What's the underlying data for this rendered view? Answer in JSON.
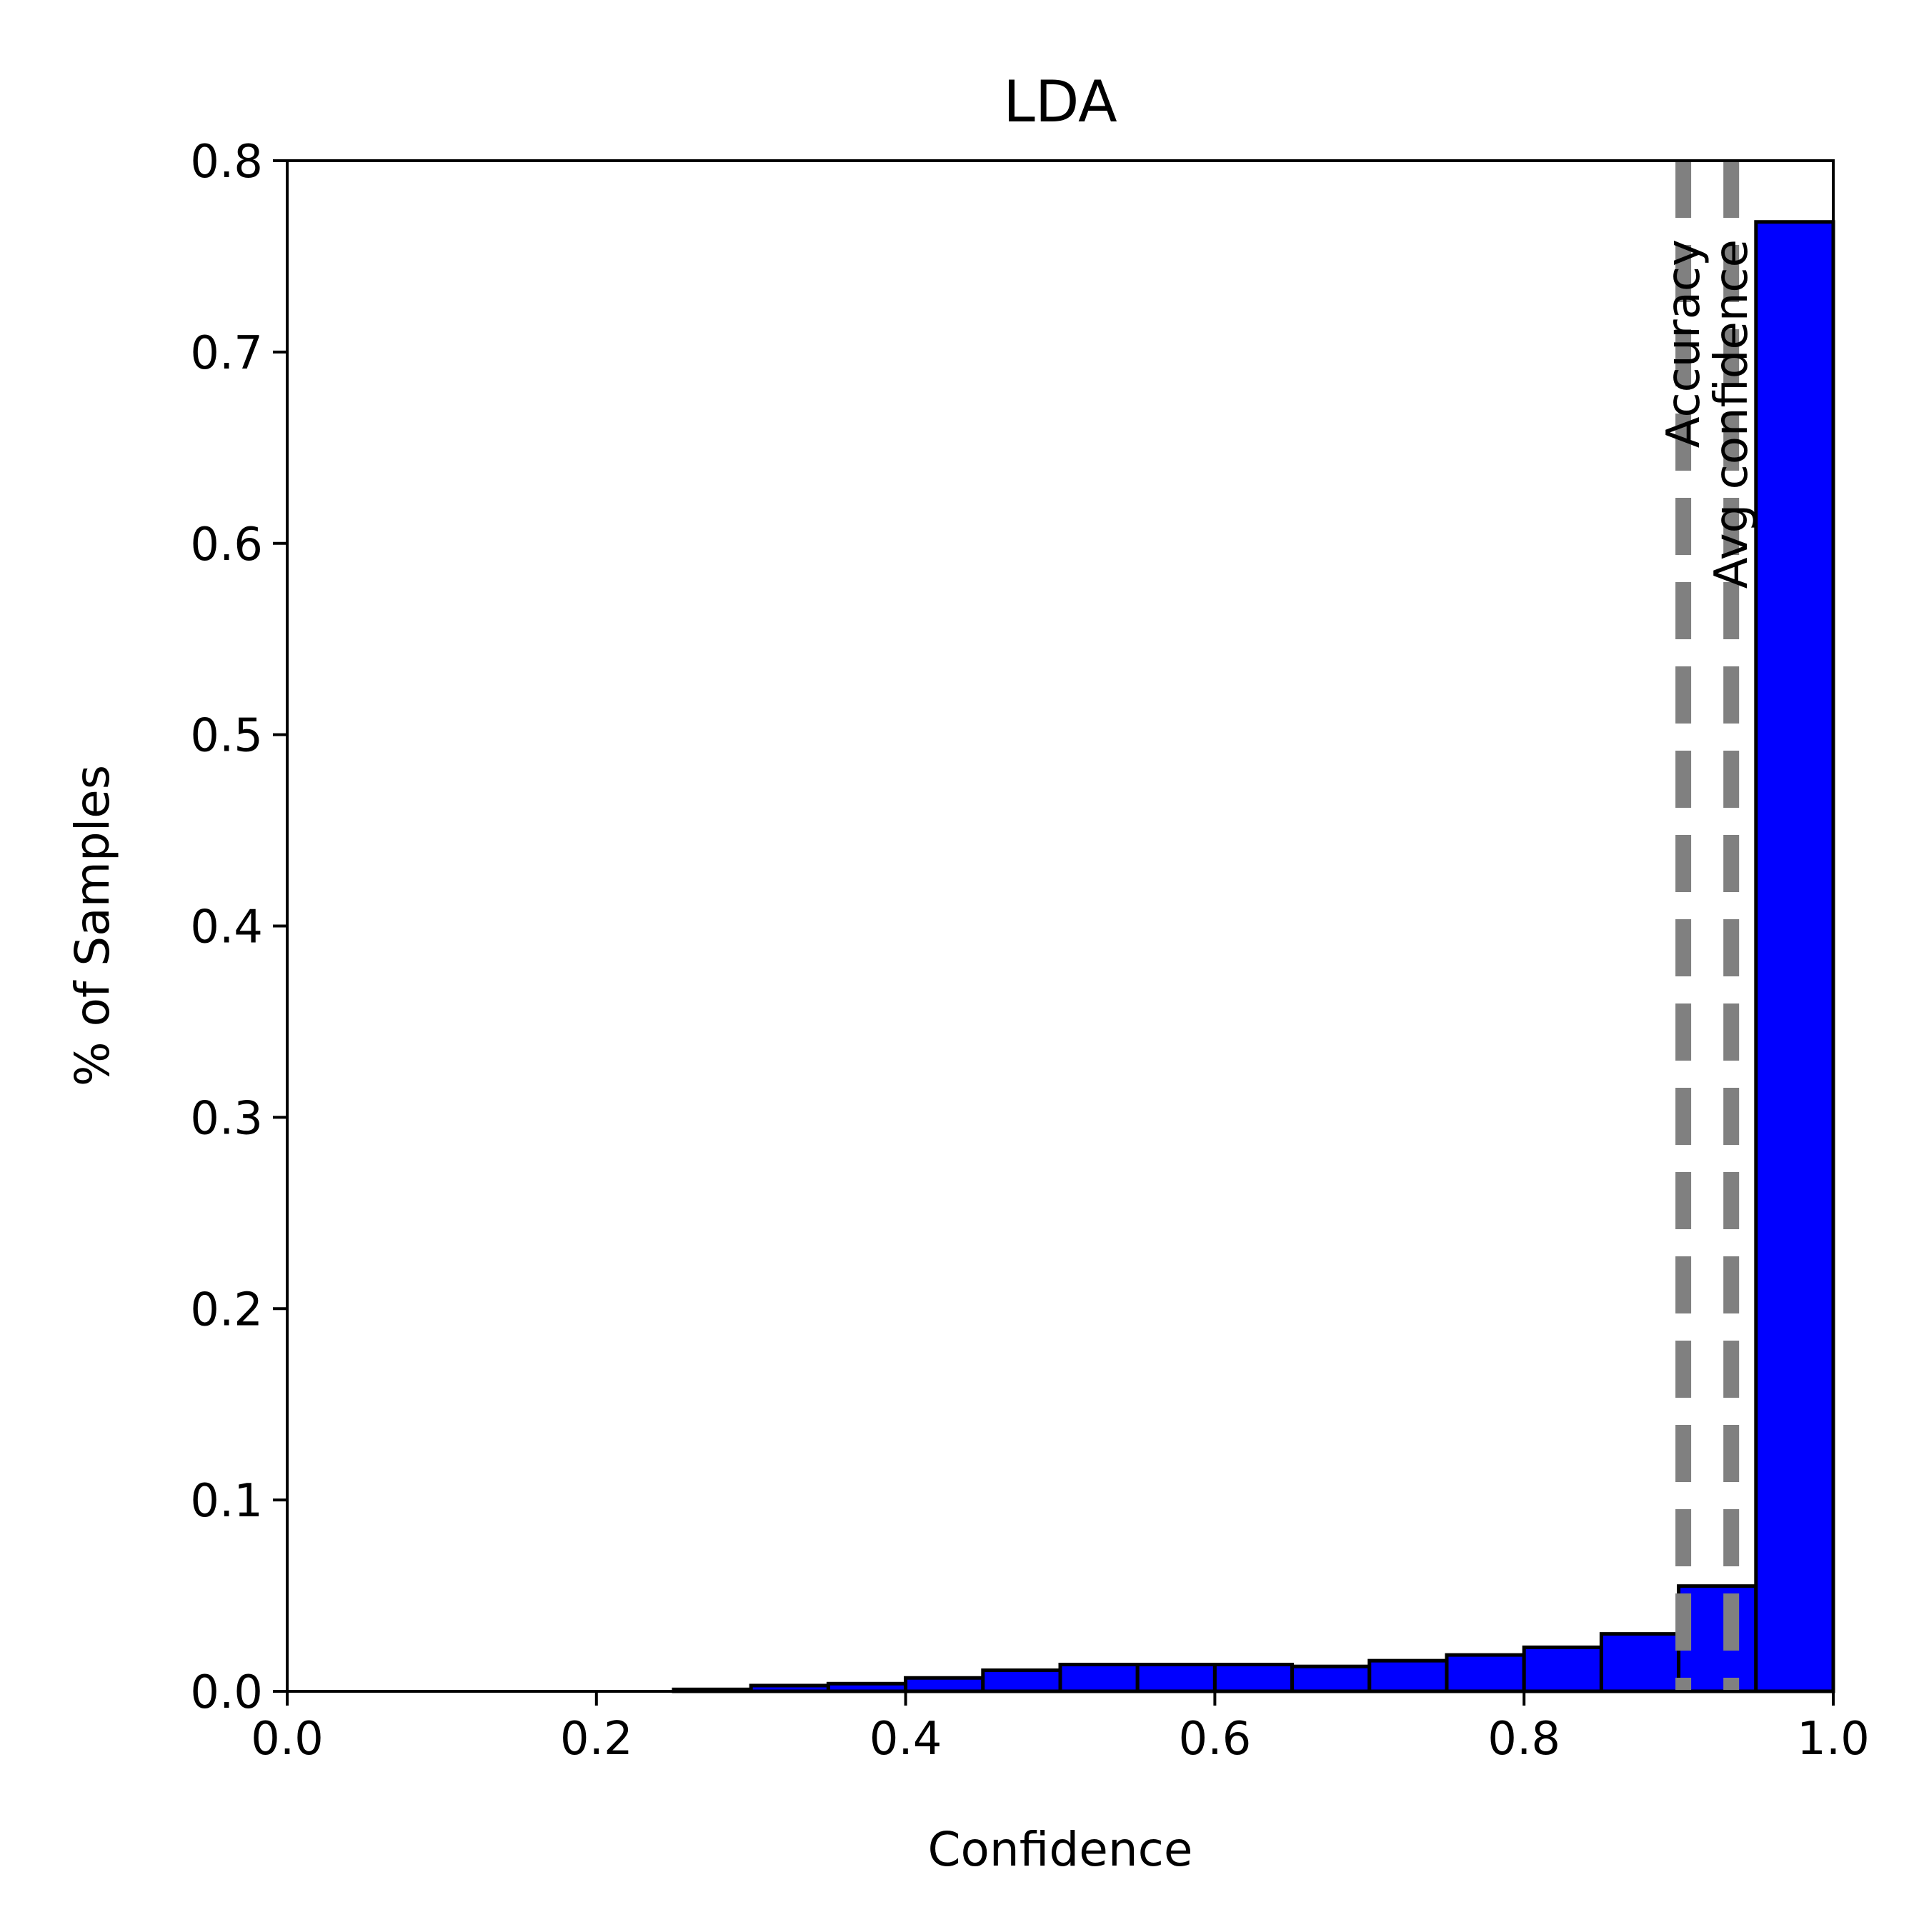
{
  "chart_data": {
    "type": "bar",
    "title": "LDA",
    "xlabel": "Confidence",
    "ylabel": "% of Samples",
    "xlim": [
      0.0,
      1.0
    ],
    "ylim": [
      0.0,
      0.8
    ],
    "xticks": [
      "0.0",
      "0.2",
      "0.4",
      "0.6",
      "0.8",
      "1.0"
    ],
    "yticks": [
      "0.0",
      "0.1",
      "0.2",
      "0.3",
      "0.4",
      "0.5",
      "0.6",
      "0.7",
      "0.8"
    ],
    "bin_width": 0.05,
    "bins": [
      {
        "x0": 0.0,
        "value": 0.0
      },
      {
        "x0": 0.05,
        "value": 0.0
      },
      {
        "x0": 0.1,
        "value": 0.0
      },
      {
        "x0": 0.15,
        "value": 0.0
      },
      {
        "x0": 0.2,
        "value": 0.0
      },
      {
        "x0": 0.25,
        "value": 0.001
      },
      {
        "x0": 0.3,
        "value": 0.003
      },
      {
        "x0": 0.35,
        "value": 0.004
      },
      {
        "x0": 0.4,
        "value": 0.007
      },
      {
        "x0": 0.45,
        "value": 0.011
      },
      {
        "x0": 0.5,
        "value": 0.014
      },
      {
        "x0": 0.55,
        "value": 0.014
      },
      {
        "x0": 0.6,
        "value": 0.014
      },
      {
        "x0": 0.65,
        "value": 0.013
      },
      {
        "x0": 0.7,
        "value": 0.016
      },
      {
        "x0": 0.75,
        "value": 0.019
      },
      {
        "x0": 0.8,
        "value": 0.023
      },
      {
        "x0": 0.85,
        "value": 0.03
      },
      {
        "x0": 0.9,
        "value": 0.055
      },
      {
        "x0": 0.95,
        "value": 0.768
      }
    ],
    "reference_lines": [
      {
        "label": "Accuracy",
        "x": 0.903
      },
      {
        "label": "Avg confidence",
        "x": 0.934
      }
    ],
    "colors": {
      "bar": "#0000ff",
      "bar_edge": "#000000",
      "reference_line": "#808080"
    },
    "grid": false
  }
}
